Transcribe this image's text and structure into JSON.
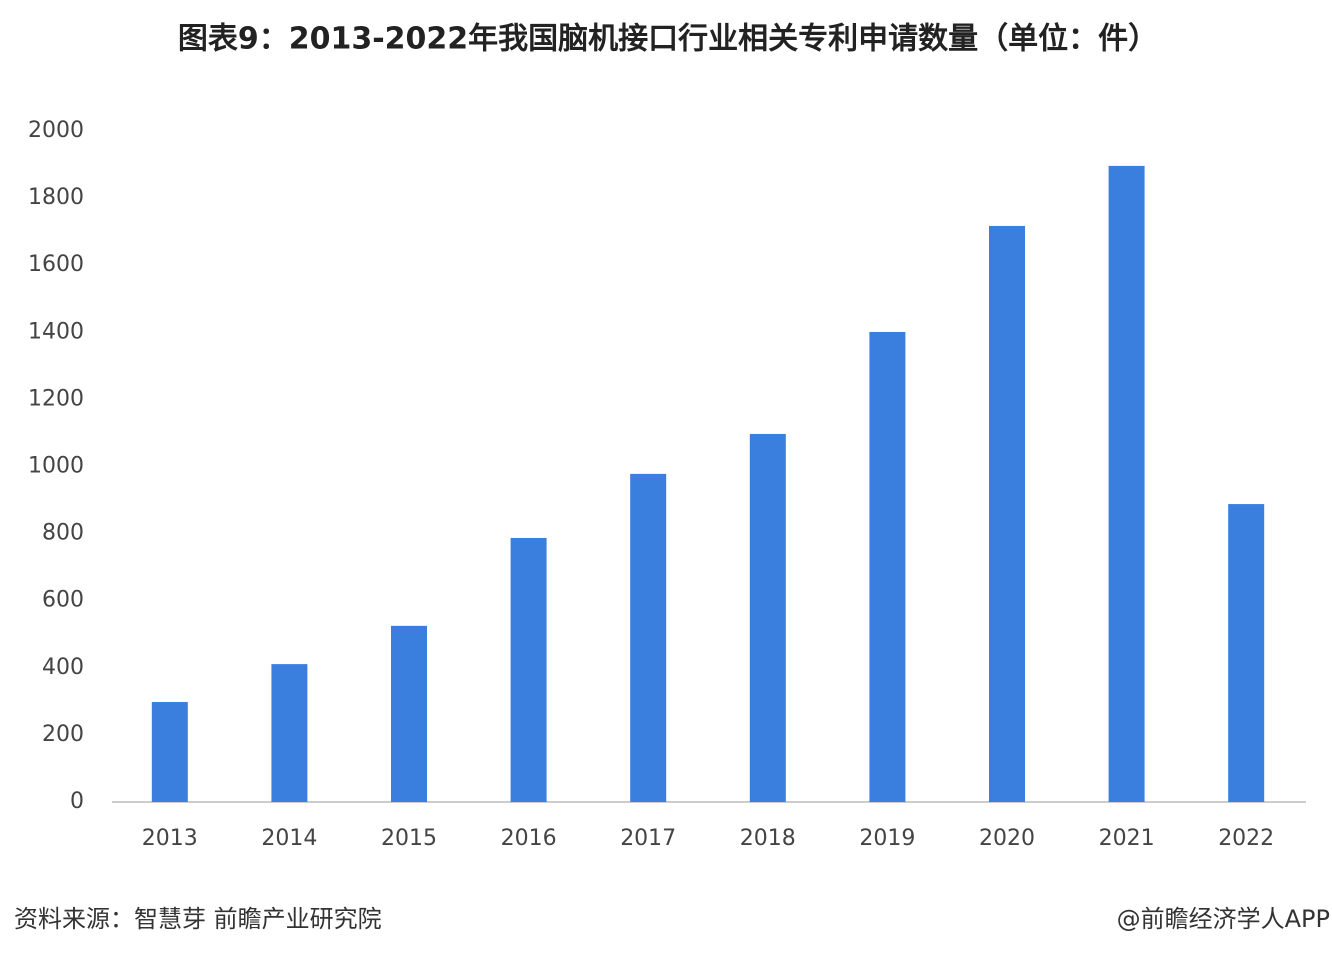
{
  "chart_data": {
    "type": "bar",
    "title": "图表9：2013-2022年我国脑机接口行业相关专利申请数量（单位：件）",
    "categories": [
      "2013",
      "2014",
      "2015",
      "2016",
      "2017",
      "2018",
      "2019",
      "2020",
      "2021",
      "2022"
    ],
    "values": [
      298,
      411,
      525,
      787,
      978,
      1097,
      1401,
      1717,
      1896,
      888
    ],
    "color": "#3a7fde",
    "ylim": [
      0,
      2000
    ],
    "yticks": [
      0,
      200,
      400,
      600,
      800,
      1000,
      1200,
      1400,
      1600,
      1800,
      2000
    ],
    "grid": false,
    "source": "资料来源：智慧芽 前瞻产业研究院",
    "credit": "@前瞻经济学人APP"
  }
}
